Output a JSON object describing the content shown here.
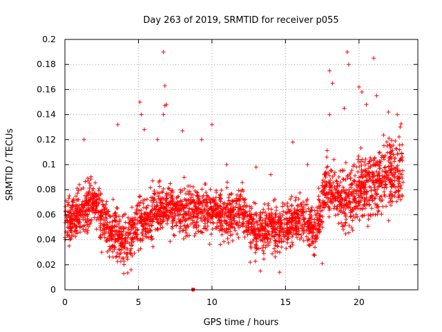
{
  "chart_data": {
    "type": "scatter",
    "title": "Day 263 of 2019, SRMTID for receiver p055",
    "xlabel": "GPS time / hours",
    "ylabel": "SRMTID / TECUs",
    "xlim": [
      0,
      24
    ],
    "ylim": [
      0,
      0.2
    ],
    "xticks": [
      0,
      5,
      10,
      15,
      20
    ],
    "xtick_labels": [
      "0",
      "5",
      "10",
      "15",
      "20"
    ],
    "yticks": [
      0,
      0.02,
      0.04,
      0.06,
      0.08,
      0.1,
      0.12,
      0.14,
      0.16,
      0.18,
      0.2
    ],
    "ytick_labels": [
      "0",
      "0.02",
      "0.04",
      "0.06",
      "0.08",
      "0.1",
      "0.12",
      "0.14",
      "0.16",
      "0.18",
      "0.2"
    ],
    "grid": true,
    "marker": "+",
    "color": "#ff0000",
    "data_range_hours": [
      0,
      23
    ],
    "trend": [
      [
        0,
        0.052
      ],
      [
        1,
        0.062
      ],
      [
        2,
        0.07
      ],
      [
        3,
        0.048
      ],
      [
        4,
        0.04
      ],
      [
        5,
        0.05
      ],
      [
        6,
        0.06
      ],
      [
        7,
        0.066
      ],
      [
        8,
        0.062
      ],
      [
        9,
        0.064
      ],
      [
        10,
        0.062
      ],
      [
        11,
        0.058
      ],
      [
        12,
        0.066
      ],
      [
        13,
        0.046
      ],
      [
        14,
        0.05
      ],
      [
        15,
        0.05
      ],
      [
        16,
        0.058
      ],
      [
        17,
        0.046
      ],
      [
        17.8,
        0.085
      ],
      [
        19,
        0.07
      ],
      [
        20,
        0.08
      ],
      [
        21,
        0.085
      ],
      [
        22,
        0.09
      ],
      [
        23,
        0.1
      ]
    ],
    "series": [
      {
        "name": "SRMTID",
        "points": [
          [
            6.7,
            0.19
          ],
          [
            19.2,
            0.19
          ],
          [
            19.3,
            0.18
          ],
          [
            21.0,
            0.185
          ],
          [
            18.0,
            0.175
          ],
          [
            18.2,
            0.165
          ],
          [
            6.8,
            0.163
          ],
          [
            20.0,
            0.162
          ],
          [
            20.2,
            0.158
          ],
          [
            21.2,
            0.155
          ],
          [
            5.1,
            0.15
          ],
          [
            6.9,
            0.148
          ],
          [
            6.8,
            0.147
          ],
          [
            5.2,
            0.14
          ],
          [
            6.7,
            0.14
          ],
          [
            18.0,
            0.14
          ],
          [
            19.0,
            0.145
          ],
          [
            20.5,
            0.148
          ],
          [
            3.6,
            0.132
          ],
          [
            10.0,
            0.132
          ],
          [
            5.4,
            0.128
          ],
          [
            8.0,
            0.127
          ],
          [
            22.0,
            0.142
          ],
          [
            22.6,
            0.14
          ],
          [
            22.8,
            0.13
          ],
          [
            1.3,
            0.12
          ],
          [
            6.3,
            0.12
          ],
          [
            9.3,
            0.12
          ],
          [
            15.5,
            0.118
          ],
          [
            11.0,
            0.1
          ],
          [
            16.5,
            0.1
          ],
          [
            13.0,
            0.098
          ],
          [
            14.0,
            0.092
          ],
          [
            4.0,
            0.013
          ],
          [
            4.5,
            0.016
          ],
          [
            13.3,
            0.015
          ],
          [
            14.6,
            0.014
          ],
          [
            8.7,
            0.0
          ],
          [
            12.6,
            0.022
          ],
          [
            17.5,
            0.021
          ],
          [
            2.5,
            0.03
          ],
          [
            3.9,
            0.025
          ]
        ]
      }
    ]
  }
}
